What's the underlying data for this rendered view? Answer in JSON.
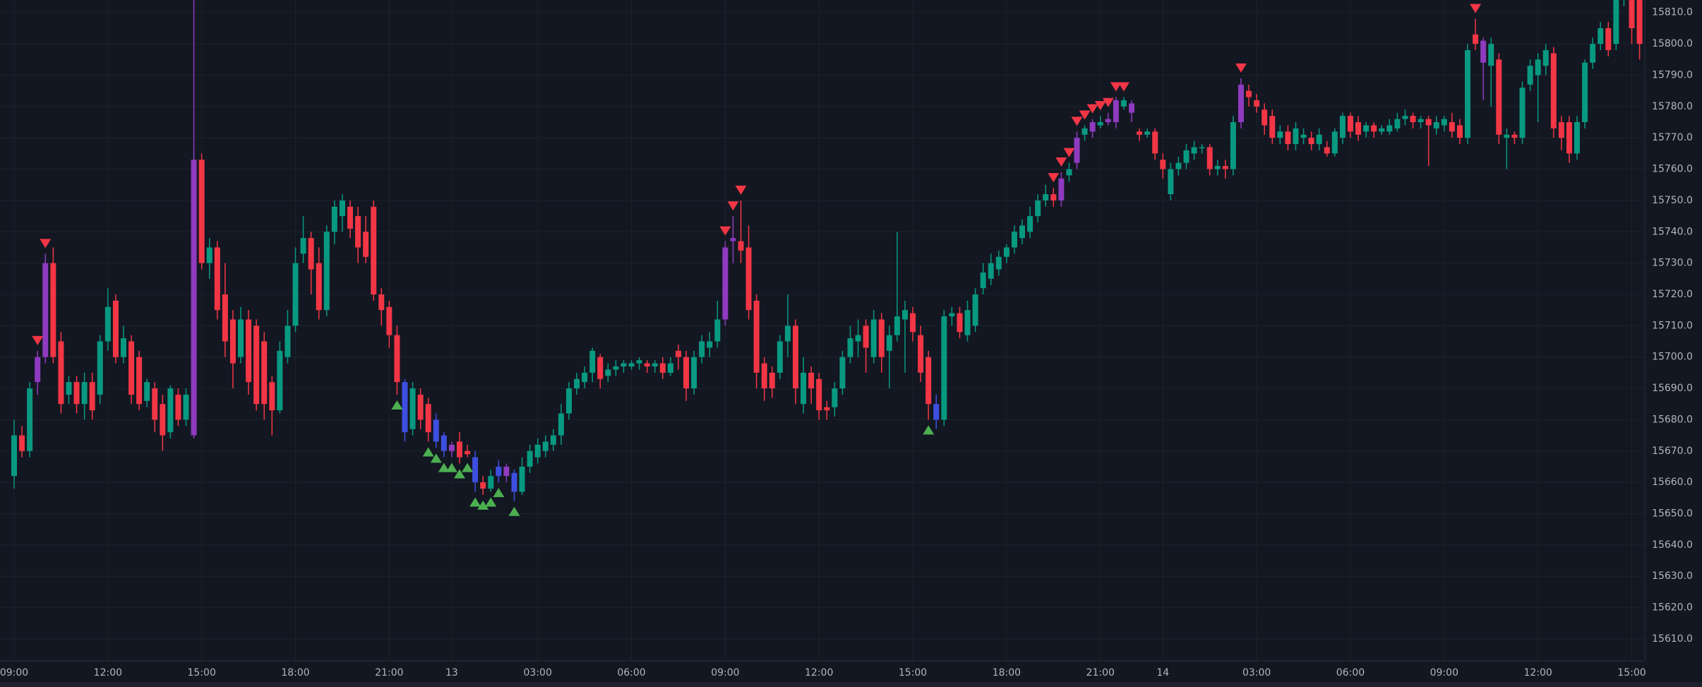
{
  "chart_data": {
    "type": "candlestick",
    "categories": [
      "09:00",
      null,
      null,
      null,
      null,
      null,
      null,
      null,
      null,
      null,
      null,
      null,
      "12:00",
      null,
      null,
      null,
      null,
      null,
      null,
      null,
      null,
      null,
      null,
      null,
      "15:00",
      null,
      null,
      null,
      null,
      null,
      null,
      null,
      null,
      null,
      null,
      null,
      "18:00",
      null,
      null,
      null,
      null,
      null,
      null,
      null,
      null,
      null,
      null,
      null,
      "21:00",
      null,
      null,
      null,
      null,
      null,
      null,
      null,
      "13",
      null,
      null,
      null,
      null,
      null,
      null,
      null,
      null,
      null,
      null,
      "03:00",
      null,
      null,
      null,
      null,
      null,
      null,
      null,
      null,
      null,
      null,
      null,
      "06:00",
      null,
      null,
      null,
      null,
      null,
      null,
      null,
      null,
      null,
      null,
      null,
      "09:00",
      null,
      null,
      null,
      null,
      null,
      null,
      null,
      null,
      null,
      null,
      null,
      "12:00",
      null,
      null,
      null,
      null,
      null,
      null,
      null,
      null,
      null,
      null,
      null,
      "15:00",
      null,
      null,
      null,
      null,
      null,
      null,
      null,
      null,
      null,
      null,
      null,
      "18:00",
      null,
      null,
      null,
      null,
      null,
      null,
      null,
      null,
      null,
      null,
      null,
      "21:00",
      null,
      null,
      null,
      null,
      null,
      null,
      null,
      "14",
      null,
      null,
      null,
      null,
      null,
      null,
      null,
      null,
      null,
      null,
      null,
      "03:00",
      null,
      null,
      null,
      null,
      null,
      null,
      null,
      null,
      null,
      null,
      null,
      "06:00",
      null,
      null,
      null,
      null,
      null,
      null,
      null,
      null,
      null,
      null,
      null,
      "09:00",
      null,
      null,
      null,
      null,
      null,
      null,
      null,
      null,
      null,
      null,
      null,
      "12:00",
      null,
      null,
      null,
      null,
      null,
      null,
      null,
      null,
      null,
      null,
      null,
      "15:00",
      null
    ],
    "open": [
      15662,
      15675,
      15670,
      15692,
      15700,
      15730,
      15705,
      15688,
      15692,
      15685,
      15692,
      15688,
      15705,
      15718,
      15700,
      15705,
      15700,
      15686,
      15690,
      15685,
      15676,
      15688,
      15680,
      15675,
      15763,
      15730,
      15735,
      15720,
      15712,
      15700,
      15712,
      15710,
      15705,
      15692,
      15683,
      15700,
      15710,
      15733,
      15738,
      15730,
      15715,
      15740,
      15745,
      15748,
      15745,
      15740,
      15748,
      15720,
      15716,
      15707,
      15692,
      15677,
      15688,
      15685,
      15680,
      15675,
      15672,
      15673,
      15670,
      15668,
      15660,
      15658,
      15662,
      15665,
      15663,
      15657,
      15665,
      15668,
      15670,
      15672,
      15675,
      15682,
      15690,
      15692,
      15695,
      15700,
      15694,
      15696,
      15697,
      15697,
      15698,
      15698,
      15697,
      15698,
      15695,
      15702,
      15700,
      15690,
      15700,
      15703,
      15705,
      15712,
      15738,
      15737,
      15735,
      15718,
      15698,
      15695,
      15695,
      15705,
      15710,
      15685,
      15695,
      15693,
      15684,
      15684,
      15690,
      15700,
      15705,
      15710,
      15700,
      15712,
      15702,
      15707,
      15712,
      15714,
      15707,
      15700,
      15685,
      15680,
      15713,
      15714,
      15707,
      15710,
      15722,
      15725,
      15728,
      15732,
      15735,
      15738,
      15740,
      15745,
      15750,
      15752,
      15750,
      15758,
      15762,
      15771,
      15772,
      15774,
      15775,
      15775,
      15780,
      15781,
      15772,
      15771,
      15772,
      15763,
      15752,
      15760,
      15762,
      15765,
      15767,
      15767,
      15760,
      15761,
      15760,
      15775,
      15785,
      15782,
      15779,
      15777,
      15770,
      15772,
      15768,
      15770,
      15770,
      15768,
      15767,
      15765,
      15770,
      15777,
      15775,
      15772,
      15774,
      15772,
      15772,
      15773,
      15776,
      15777,
      15775,
      15776,
      15773,
      15774,
      15775,
      15774,
      15770,
      15803,
      15801,
      15793,
      15795,
      15770,
      15771,
      15770,
      15787,
      15790,
      15793,
      15797,
      15775,
      15775,
      15765,
      15775,
      15794,
      15800,
      15805,
      15800,
      15815,
      15830,
      15820
    ],
    "high": [
      15680,
      15678,
      15692,
      15702,
      15733,
      15735,
      15708,
      15694,
      15694,
      15695,
      15695,
      15707,
      15722,
      15720,
      15710,
      15707,
      15702,
      15693,
      15692,
      15688,
      15691,
      15690,
      15690,
      15815,
      15765,
      15738,
      15737,
      15730,
      15715,
      15716,
      15715,
      15712,
      15708,
      15694,
      15705,
      15715,
      15735,
      15745,
      15740,
      15735,
      15742,
      15750,
      15752,
      15750,
      15748,
      15745,
      15750,
      15722,
      15718,
      15710,
      15693,
      15692,
      15690,
      15687,
      15682,
      15676,
      15673,
      15676,
      15672,
      15670,
      15662,
      15664,
      15667,
      15666,
      15664,
      15668,
      15672,
      15674,
      15675,
      15677,
      15685,
      15692,
      15695,
      15697,
      15703,
      15701,
      15698,
      15699,
      15699,
      15699,
      15700,
      15699,
      15699,
      15700,
      15700,
      15704,
      15702,
      15702,
      15707,
      15708,
      15718,
      15737,
      15745,
      15750,
      15742,
      15720,
      15700,
      15697,
      15707,
      15720,
      15712,
      15700,
      15697,
      15695,
      15686,
      15692,
      15702,
      15710,
      15712,
      15712,
      15715,
      15714,
      15710,
      15740,
      15718,
      15716,
      15710,
      15702,
      15688,
      15715,
      15716,
      15716,
      15718,
      15722,
      15730,
      15733,
      15734,
      15736,
      15742,
      15744,
      15748,
      15752,
      15755,
      15754,
      15759,
      15762,
      15772,
      15774,
      15776,
      15777,
      15778,
      15783,
      15783,
      15782,
      15773,
      15773,
      15773,
      15765,
      15762,
      15764,
      15768,
      15769,
      15768,
      15768,
      15763,
      15763,
      15777,
      15789,
      15787,
      15784,
      15781,
      15779,
      15774,
      15774,
      15775,
      15773,
      15772,
      15773,
      15769,
      15773,
      15778,
      15778,
      15777,
      15775,
      15775,
      15774,
      15776,
      15778,
      15779,
      15778,
      15777,
      15777,
      15777,
      15777,
      15778,
      15776,
      15800,
      15808,
      15802,
      15802,
      15797,
      15773,
      15772,
      15788,
      15795,
      15797,
      15800,
      15799,
      15777,
      15777,
      15777,
      15795,
      15802,
      15807,
      15807,
      15818,
      15835,
      15835,
      15825
    ],
    "low": [
      15658,
      15668,
      15668,
      15688,
      15698,
      15698,
      15682,
      15685,
      15682,
      15680,
      15680,
      15685,
      15702,
      15698,
      15698,
      15685,
      15683,
      15684,
      15676,
      15670,
      15674,
      15678,
      15678,
      15674,
      15728,
      15725,
      15712,
      15700,
      15690,
      15698,
      15688,
      15683,
      15680,
      15675,
      15682,
      15698,
      15708,
      15730,
      15720,
      15712,
      15713,
      15736,
      15740,
      15738,
      15730,
      15730,
      15718,
      15710,
      15703,
      15688,
      15673,
      15675,
      15677,
      15673,
      15671,
      15668,
      15668,
      15666,
      15668,
      15657,
      15656,
      15657,
      15660,
      15660,
      15654,
      15656,
      15663,
      15666,
      15668,
      15670,
      15672,
      15680,
      15688,
      15690,
      15692,
      15690,
      15692,
      15694,
      15695,
      15696,
      15696,
      15695,
      15695,
      15693,
      15694,
      15696,
      15686,
      15688,
      15698,
      15700,
      15703,
      15710,
      15730,
      15730,
      15712,
      15690,
      15686,
      15687,
      15693,
      15700,
      15685,
      15682,
      15685,
      15680,
      15680,
      15681,
      15688,
      15698,
      15700,
      15695,
      15698,
      15695,
      15690,
      15705,
      15695,
      15705,
      15692,
      15680,
      15677,
      15678,
      15710,
      15706,
      15705,
      15708,
      15720,
      15723,
      15726,
      15730,
      15733,
      15736,
      15738,
      15743,
      15748,
      15748,
      15748,
      15756,
      15760,
      15769,
      15770,
      15773,
      15774,
      15773,
      15779,
      15775,
      15769,
      15770,
      15763,
      15757,
      15750,
      15758,
      15760,
      15763,
      15765,
      15758,
      15758,
      15757,
      15758,
      15773,
      15780,
      15778,
      15771,
      15768,
      15768,
      15766,
      15766,
      15768,
      15766,
      15766,
      15764,
      15764,
      15768,
      15770,
      15769,
      15770,
      15770,
      15771,
      15771,
      15772,
      15774,
      15773,
      15773,
      15761,
      15771,
      15772,
      15770,
      15768,
      15768,
      15798,
      15782,
      15780,
      15768,
      15760,
      15768,
      15768,
      15785,
      15775,
      15790,
      15770,
      15766,
      15762,
      15763,
      15773,
      15792,
      15798,
      15796,
      15798,
      15812,
      15800,
      15795
    ],
    "close": [
      15675,
      15670,
      15690,
      15700,
      15730,
      15700,
      15685,
      15692,
      15685,
      15692,
      15683,
      15705,
      15716,
      15700,
      15706,
      15688,
      15685,
      15692,
      15680,
      15675,
      15690,
      15680,
      15688,
      15763,
      15730,
      15735,
      15715,
      15705,
      15698,
      15712,
      15692,
      15685,
      15685,
      15683,
      15702,
      15710,
      15730,
      15738,
      15728,
      15715,
      15740,
      15748,
      15750,
      15741,
      15735,
      15732,
      15720,
      15715,
      15707,
      15692,
      15676,
      15690,
      15680,
      15676,
      15673,
      15670,
      15670,
      15668,
      15669,
      15660,
      15658,
      15662,
      15665,
      15662,
      15657,
      15665,
      15670,
      15672,
      15673,
      15675,
      15682,
      15690,
      15693,
      15695,
      15702,
      15693,
      15696,
      15697,
      15698,
      15698,
      15699,
      15697,
      15698,
      15695,
      15698,
      15700,
      15690,
      15700,
      15705,
      15705,
      15712,
      15735,
      15737,
      15734,
      15715,
      15695,
      15690,
      15690,
      15705,
      15710,
      15690,
      15695,
      15690,
      15683,
      15683,
      15690,
      15700,
      15706,
      15707,
      15703,
      15712,
      15700,
      15707,
      15713,
      15715,
      15708,
      15695,
      15685,
      15680,
      15713,
      15714,
      15708,
      15715,
      15720,
      15727,
      15730,
      15732,
      15735,
      15740,
      15742,
      15745,
      15750,
      15752,
      15750,
      15757,
      15760,
      15770,
      15773,
      15775,
      15775,
      15776,
      15782,
      15782,
      15778,
      15771,
      15772,
      15765,
      15760,
      15760,
      15762,
      15766,
      15767,
      15767,
      15760,
      15761,
      15760,
      15775,
      15787,
      15783,
      15780,
      15774,
      15770,
      15772,
      15768,
      15773,
      15771,
      15768,
      15771,
      15765,
      15772,
      15777,
      15772,
      15771,
      15774,
      15772,
      15773,
      15774,
      15776,
      15777,
      15775,
      15776,
      15774,
      15775,
      15776,
      15772,
      15770,
      15798,
      15800,
      15794,
      15800,
      15771,
      15771,
      15770,
      15786,
      15793,
      15795,
      15798,
      15773,
      15770,
      15765,
      15775,
      15794,
      15800,
      15805,
      15798,
      15815,
      15830,
      15805,
      15800
    ],
    "up_color": "#089981",
    "down_color": "#f23645",
    "purple_color": "#8e3bbf",
    "blue_color": "#3d4fe0",
    "purple_candles": [
      3,
      4,
      23,
      56,
      63,
      91,
      92,
      134,
      136,
      138,
      140,
      141,
      143,
      157,
      188
    ],
    "blue_candles": [
      50,
      54,
      55,
      59,
      62,
      64,
      118
    ],
    "buy_signals": [
      49,
      53,
      54,
      55,
      56,
      57,
      58,
      59,
      60,
      61,
      62,
      64,
      117
    ],
    "buy_color": "#4caf50",
    "sell_signals": [
      3,
      4,
      91,
      92,
      93,
      133,
      134,
      135,
      136,
      137,
      138,
      139,
      140,
      141,
      142,
      157,
      187
    ],
    "sell_color": "#f23645",
    "ylim": [
      15603,
      15814
    ],
    "yticks": [
      {
        "value": 15610,
        "label": "15610.0"
      },
      {
        "value": 15620,
        "label": "15620.0"
      },
      {
        "value": 15630,
        "label": "15630.0"
      },
      {
        "value": 15640,
        "label": "15640.0"
      },
      {
        "value": 15650,
        "label": "15650.0"
      },
      {
        "value": 15660,
        "label": "15660.0"
      },
      {
        "value": 15670,
        "label": "15670.0"
      },
      {
        "value": 15680,
        "label": "15680.0"
      },
      {
        "value": 15690,
        "label": "15690.0"
      },
      {
        "value": 15700,
        "label": "15700.0"
      },
      {
        "value": 15710,
        "label": "15710.0"
      },
      {
        "value": 15720,
        "label": "15720.0"
      },
      {
        "value": 15730,
        "label": "15730.0"
      },
      {
        "value": 15740,
        "label": "15740.0"
      },
      {
        "value": 15750,
        "label": "15750.0"
      },
      {
        "value": 15760,
        "label": "15760.0"
      },
      {
        "value": 15770,
        "label": "15770.0"
      },
      {
        "value": 15780,
        "label": "15780.0"
      },
      {
        "value": 15790,
        "label": "15790.0"
      },
      {
        "value": 15800,
        "label": "15800.0"
      },
      {
        "value": 15810,
        "label": "15810.0"
      }
    ],
    "grid": true
  }
}
